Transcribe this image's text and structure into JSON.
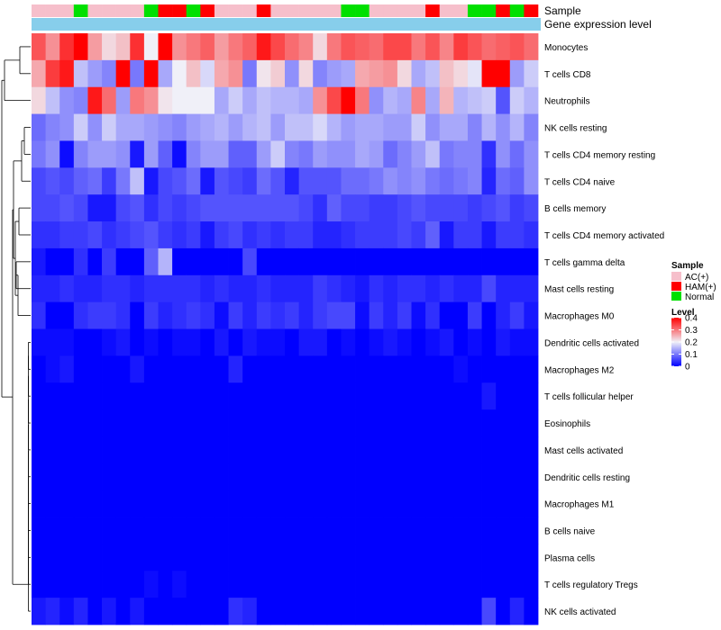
{
  "chart_data": {
    "type": "heatmap",
    "title": "",
    "annotation_tracks": [
      "Sample",
      "Gene expression level"
    ],
    "n_samples": 36,
    "sample_groups": [
      "AC(+)",
      "AC(+)",
      "AC(+)",
      "Normal",
      "AC(+)",
      "AC(+)",
      "AC(+)",
      "AC(+)",
      "Normal",
      "HAM(+)",
      "HAM(+)",
      "Normal",
      "HAM(+)",
      "AC(+)",
      "AC(+)",
      "AC(+)",
      "HAM(+)",
      "AC(+)",
      "AC(+)",
      "AC(+)",
      "AC(+)",
      "AC(+)",
      "Normal",
      "Normal",
      "AC(+)",
      "AC(+)",
      "AC(+)",
      "AC(+)",
      "HAM(+)",
      "AC(+)",
      "AC(+)",
      "Normal",
      "Normal",
      "HAM(+)",
      "Normal",
      "HAM(+)"
    ],
    "rows": [
      {
        "name": "Monocytes",
        "values": [
          0.33,
          0.28,
          0.36,
          0.4,
          0.27,
          0.22,
          0.24,
          0.36,
          0.2,
          0.4,
          0.28,
          0.3,
          0.32,
          0.27,
          0.3,
          0.32,
          0.38,
          0.34,
          0.31,
          0.29,
          0.22,
          0.3,
          0.33,
          0.32,
          0.31,
          0.34,
          0.34,
          0.3,
          0.33,
          0.29,
          0.35,
          0.33,
          0.31,
          0.32,
          0.33,
          0.31
        ]
      },
      {
        "name": "T cells CD8",
        "values": [
          0.26,
          0.35,
          0.38,
          0.16,
          0.13,
          0.11,
          0.4,
          0.1,
          0.4,
          0.14,
          0.2,
          0.24,
          0.18,
          0.26,
          0.28,
          0.1,
          0.21,
          0.23,
          0.12,
          0.22,
          0.11,
          0.13,
          0.14,
          0.26,
          0.27,
          0.28,
          0.22,
          0.14,
          0.16,
          0.24,
          0.22,
          0.19,
          0.4,
          0.4,
          0.13,
          0.17
        ]
      },
      {
        "name": "Neutrophils",
        "values": [
          0.22,
          0.16,
          0.12,
          0.11,
          0.38,
          0.31,
          0.13,
          0.3,
          0.28,
          0.21,
          0.2,
          0.2,
          0.2,
          0.14,
          0.17,
          0.14,
          0.16,
          0.15,
          0.15,
          0.14,
          0.28,
          0.34,
          0.4,
          0.3,
          0.12,
          0.15,
          0.14,
          0.29,
          0.14,
          0.25,
          0.15,
          0.16,
          0.17,
          0.07,
          0.17,
          0.15
        ]
      },
      {
        "name": "NK cells resting",
        "values": [
          0.09,
          0.11,
          0.12,
          0.17,
          0.12,
          0.17,
          0.14,
          0.14,
          0.13,
          0.12,
          0.11,
          0.13,
          0.14,
          0.15,
          0.13,
          0.15,
          0.16,
          0.13,
          0.16,
          0.16,
          0.18,
          0.15,
          0.13,
          0.14,
          0.14,
          0.13,
          0.13,
          0.17,
          0.12,
          0.14,
          0.14,
          0.11,
          0.15,
          0.12,
          0.15,
          0.11
        ]
      },
      {
        "name": "T cells CD4 memory resting",
        "values": [
          0.1,
          0.12,
          0.01,
          0.11,
          0.13,
          0.13,
          0.12,
          0.02,
          0.13,
          0.08,
          0.01,
          0.11,
          0.13,
          0.13,
          0.08,
          0.08,
          0.13,
          0.17,
          0.11,
          0.1,
          0.13,
          0.12,
          0.12,
          0.14,
          0.13,
          0.09,
          0.11,
          0.13,
          0.16,
          0.1,
          0.11,
          0.11,
          0.04,
          0.12,
          0.09,
          0.12
        ]
      },
      {
        "name": "T cells CD4 naive",
        "values": [
          0.06,
          0.07,
          0.06,
          0.08,
          0.09,
          0.05,
          0.1,
          0.16,
          0.02,
          0.06,
          0.07,
          0.09,
          0.02,
          0.07,
          0.06,
          0.05,
          0.09,
          0.07,
          0.03,
          0.07,
          0.07,
          0.07,
          0.09,
          0.09,
          0.1,
          0.12,
          0.11,
          0.12,
          0.1,
          0.09,
          0.1,
          0.11,
          0.03,
          0.09,
          0.08,
          0.12
        ]
      },
      {
        "name": "B cells memory",
        "values": [
          0.06,
          0.06,
          0.07,
          0.06,
          0.02,
          0.02,
          0.06,
          0.07,
          0.04,
          0.06,
          0.05,
          0.06,
          0.07,
          0.07,
          0.07,
          0.07,
          0.07,
          0.07,
          0.07,
          0.06,
          0.04,
          0.08,
          0.06,
          0.06,
          0.05,
          0.05,
          0.06,
          0.07,
          0.06,
          0.06,
          0.06,
          0.05,
          0.06,
          0.07,
          0.05,
          0.06
        ]
      },
      {
        "name": "T cells CD4 memory activated",
        "values": [
          0.04,
          0.04,
          0.05,
          0.05,
          0.06,
          0.04,
          0.05,
          0.06,
          0.07,
          0.05,
          0.04,
          0.05,
          0.02,
          0.05,
          0.06,
          0.04,
          0.05,
          0.04,
          0.05,
          0.05,
          0.03,
          0.03,
          0.04,
          0.05,
          0.05,
          0.05,
          0.06,
          0.05,
          0.08,
          0.02,
          0.05,
          0.05,
          0.02,
          0.05,
          0.05,
          0.04
        ]
      },
      {
        "name": "T cells gamma delta",
        "values": [
          0.02,
          0.0,
          0.0,
          0.04,
          0.0,
          0.05,
          0.0,
          0.0,
          0.08,
          0.15,
          0.0,
          0.0,
          0.0,
          0.0,
          0.0,
          0.06,
          0.0,
          0.0,
          0.0,
          0.0,
          0.0,
          0.0,
          0.0,
          0.0,
          0.0,
          0.0,
          0.0,
          0.0,
          0.0,
          0.0,
          0.0,
          0.0,
          0.0,
          0.0,
          0.0,
          0.0
        ]
      },
      {
        "name": "Mast cells resting",
        "values": [
          0.03,
          0.03,
          0.04,
          0.03,
          0.03,
          0.04,
          0.04,
          0.03,
          0.04,
          0.04,
          0.04,
          0.04,
          0.03,
          0.04,
          0.03,
          0.03,
          0.04,
          0.03,
          0.03,
          0.03,
          0.05,
          0.04,
          0.03,
          0.02,
          0.04,
          0.03,
          0.04,
          0.04,
          0.03,
          0.04,
          0.03,
          0.03,
          0.06,
          0.03,
          0.03,
          0.03
        ]
      },
      {
        "name": "Macrophages M0",
        "values": [
          0.04,
          0.0,
          0.0,
          0.04,
          0.05,
          0.05,
          0.04,
          0.0,
          0.05,
          0.03,
          0.04,
          0.05,
          0.04,
          0.01,
          0.05,
          0.03,
          0.05,
          0.04,
          0.05,
          0.03,
          0.05,
          0.06,
          0.06,
          0.01,
          0.05,
          0.03,
          0.05,
          0.01,
          0.04,
          0.0,
          0.0,
          0.05,
          0.0,
          0.03,
          0.05,
          0.02
        ]
      },
      {
        "name": "Dendritic cells activated",
        "values": [
          0.01,
          0.01,
          0.01,
          0.0,
          0.0,
          0.01,
          0.02,
          0.0,
          0.01,
          0.0,
          0.01,
          0.01,
          0.0,
          0.02,
          0.0,
          0.02,
          0.01,
          0.01,
          0.0,
          0.02,
          0.02,
          0.0,
          0.01,
          0.0,
          0.01,
          0.02,
          0.01,
          0.0,
          0.01,
          0.02,
          0.0,
          0.01,
          0.0,
          0.02,
          0.01,
          0.01
        ]
      },
      {
        "name": "Macrophages M2",
        "values": [
          0.0,
          0.01,
          0.02,
          0.0,
          0.0,
          0.0,
          0.0,
          0.02,
          0.0,
          0.0,
          0.0,
          0.0,
          0.0,
          0.0,
          0.03,
          0.0,
          0.0,
          0.0,
          0.0,
          0.0,
          0.0,
          0.0,
          0.0,
          0.0,
          0.0,
          0.0,
          0.0,
          0.0,
          0.0,
          0.0,
          0.01,
          0.0,
          0.0,
          0.0,
          0.0,
          0.0
        ]
      },
      {
        "name": "T cells follicular helper",
        "values": [
          0.0,
          0.0,
          0.0,
          0.0,
          0.0,
          0.0,
          0.0,
          0.0,
          0.0,
          0.0,
          0.0,
          0.0,
          0.0,
          0.0,
          0.0,
          0.0,
          0.0,
          0.0,
          0.0,
          0.0,
          0.0,
          0.0,
          0.0,
          0.0,
          0.0,
          0.0,
          0.0,
          0.0,
          0.0,
          0.0,
          0.0,
          0.0,
          0.02,
          0.0,
          0.0,
          0.0
        ]
      },
      {
        "name": "Eosinophils",
        "values": [
          0,
          0,
          0,
          0,
          0,
          0,
          0,
          0,
          0,
          0,
          0,
          0,
          0,
          0,
          0,
          0,
          0,
          0,
          0,
          0,
          0,
          0,
          0,
          0,
          0,
          0,
          0,
          0,
          0,
          0,
          0,
          0,
          0,
          0,
          0,
          0
        ]
      },
      {
        "name": "Mast cells activated",
        "values": [
          0,
          0,
          0,
          0,
          0,
          0,
          0,
          0,
          0,
          0,
          0,
          0,
          0,
          0,
          0,
          0,
          0,
          0,
          0,
          0,
          0,
          0,
          0,
          0,
          0,
          0,
          0,
          0,
          0,
          0,
          0,
          0,
          0,
          0,
          0,
          0
        ]
      },
      {
        "name": "Dendritic cells resting",
        "values": [
          0,
          0,
          0,
          0,
          0,
          0,
          0,
          0,
          0,
          0,
          0,
          0,
          0,
          0,
          0,
          0,
          0,
          0,
          0,
          0,
          0,
          0,
          0,
          0,
          0,
          0,
          0,
          0,
          0,
          0,
          0,
          0,
          0,
          0,
          0,
          0
        ]
      },
      {
        "name": "Macrophages M1",
        "values": [
          0,
          0,
          0,
          0,
          0,
          0,
          0,
          0,
          0,
          0,
          0,
          0,
          0,
          0,
          0,
          0,
          0,
          0,
          0,
          0,
          0,
          0,
          0,
          0,
          0,
          0,
          0,
          0,
          0,
          0,
          0,
          0,
          0,
          0,
          0,
          0
        ]
      },
      {
        "name": "B cells naive",
        "values": [
          0,
          0,
          0,
          0,
          0,
          0,
          0,
          0,
          0,
          0,
          0,
          0,
          0,
          0,
          0,
          0,
          0,
          0,
          0,
          0,
          0,
          0,
          0,
          0,
          0,
          0,
          0,
          0,
          0,
          0,
          0,
          0,
          0,
          0,
          0,
          0
        ]
      },
      {
        "name": "Plasma cells",
        "values": [
          0,
          0,
          0,
          0,
          0,
          0,
          0,
          0,
          0,
          0,
          0,
          0,
          0,
          0,
          0,
          0,
          0,
          0,
          0,
          0,
          0,
          0,
          0,
          0,
          0,
          0,
          0,
          0,
          0,
          0,
          0,
          0,
          0,
          0,
          0,
          0
        ]
      },
      {
        "name": "T cells regulatory  Tregs",
        "values": [
          0.0,
          0.0,
          0.0,
          0.0,
          0.0,
          0.0,
          0.0,
          0.0,
          0.01,
          0.0,
          0.01,
          0.0,
          0.0,
          0.0,
          0.0,
          0.0,
          0.0,
          0.0,
          0.0,
          0.0,
          0.0,
          0.0,
          0.0,
          0.0,
          0.0,
          0.0,
          0.0,
          0.0,
          0.0,
          0.0,
          0.0,
          0.0,
          0.0,
          0.0,
          0.0,
          0.0
        ]
      },
      {
        "name": "NK cells activated",
        "values": [
          0.02,
          0.03,
          0.01,
          0.03,
          0.0,
          0.02,
          0.0,
          0.02,
          0.0,
          0.0,
          0.0,
          0.0,
          0.0,
          0.0,
          0.04,
          0.03,
          0.0,
          0.0,
          0.0,
          0.0,
          0.0,
          0.0,
          0.0,
          0.0,
          0.0,
          0.0,
          0.0,
          0.0,
          0.0,
          0.0,
          0.0,
          0.0,
          0.06,
          0.0,
          0.03,
          0.0
        ]
      }
    ],
    "legend": {
      "sample_title": "Sample",
      "sample_entries": [
        {
          "label": "AC(+)",
          "color": "#f6bfcb"
        },
        {
          "label": "HAM(+)",
          "color": "#ff0000"
        },
        {
          "label": "Normal",
          "color": "#00e000"
        }
      ],
      "level_title": "Level",
      "level_ticks": [
        0.4,
        0.3,
        0.2,
        0.1,
        0
      ],
      "level_tick_labels": [
        "0.4",
        "0.3",
        "0.2",
        "0.1",
        "0"
      ]
    },
    "colors": {
      "low": "#0000ff",
      "mid": "#f0f0f8",
      "high": "#ff0000",
      "expression_track": "#87ceeb"
    },
    "scale": {
      "min": 0,
      "mid": 0.2,
      "max": 0.4
    }
  }
}
